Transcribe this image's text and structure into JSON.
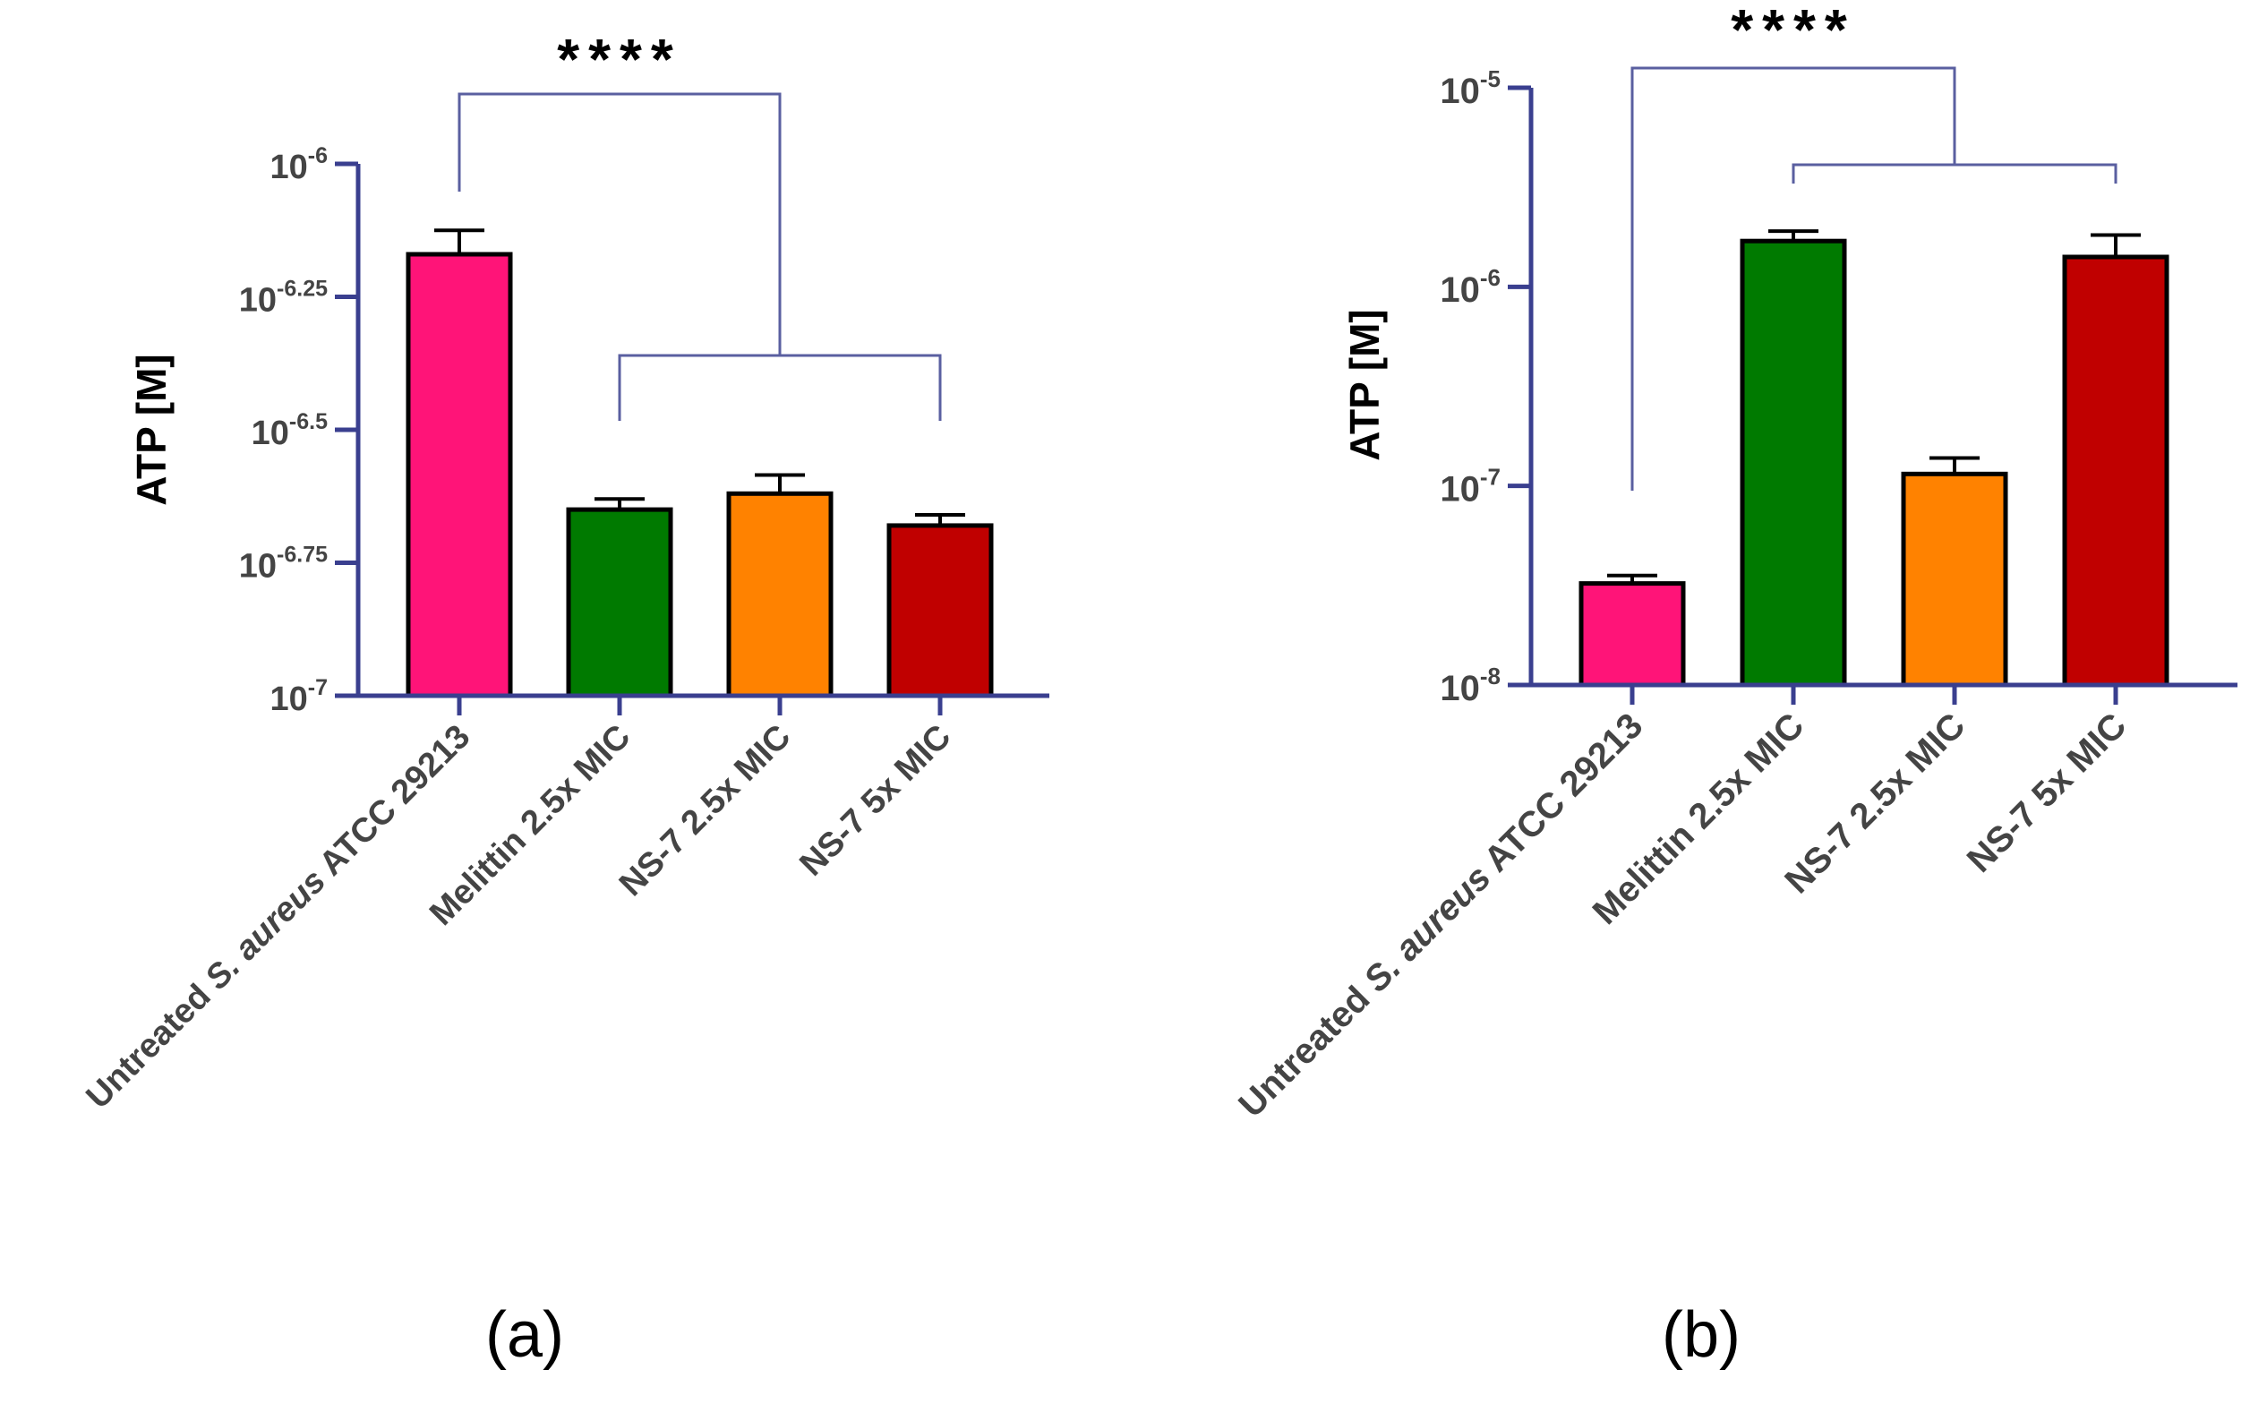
{
  "colors": {
    "axis": "#3a3f8f",
    "bracket": "#5a5fa0",
    "bar_outline": "#000000"
  },
  "chart_data": [
    {
      "id": "a",
      "panel_label": "(a)",
      "type": "bar",
      "ylabel": "ATP [M]",
      "yscale": "log10",
      "ylim_exponent": [
        -7,
        -6
      ],
      "ytick_labels": [
        {
          "base": "10",
          "exp": "-6",
          "value_exp": -6
        },
        {
          "base": "10",
          "exp": "-6.25",
          "value_exp": -6.25
        },
        {
          "base": "10",
          "exp": "-6.5",
          "value_exp": -6.5
        },
        {
          "base": "10",
          "exp": "-6.75",
          "value_exp": -6.75
        },
        {
          "base": "10",
          "exp": "-7",
          "value_exp": -7
        }
      ],
      "categories": [
        {
          "pre": "Untreated ",
          "italic": "S. aureus",
          "post": " ATCC 29213"
        },
        {
          "pre": "Melittin 2.5x MIC",
          "italic": "",
          "post": ""
        },
        {
          "pre": "NS-7 2.5x MIC",
          "italic": "",
          "post": ""
        },
        {
          "pre": "NS-7 5x MIC",
          "italic": "",
          "post": ""
        }
      ],
      "values_exp": [
        -6.17,
        -6.65,
        -6.62,
        -6.68
      ],
      "error_exp": [
        -6.125,
        -6.63,
        -6.585,
        -6.66
      ],
      "bar_colors": [
        "#ff1478",
        "#007a00",
        "#ff8200",
        "#c00000"
      ],
      "significance": {
        "label": "****",
        "from": 0,
        "to_group": [
          1,
          3
        ]
      }
    },
    {
      "id": "b",
      "panel_label": "(b)",
      "type": "bar",
      "ylabel": "ATP [M]",
      "yscale": "log10",
      "ylim_exponent": [
        -8,
        -5
      ],
      "ytick_labels": [
        {
          "base": "10",
          "exp": "-5",
          "value_exp": -5
        },
        {
          "base": "10",
          "exp": "-6",
          "value_exp": -6
        },
        {
          "base": "10",
          "exp": "-7",
          "value_exp": -7
        },
        {
          "base": "10",
          "exp": "-8",
          "value_exp": -8
        }
      ],
      "categories": [
        {
          "pre": "Untreated ",
          "italic": "S. aureus",
          "post": " ATCC 29213"
        },
        {
          "pre": "Melittin 2.5x MIC",
          "italic": "",
          "post": ""
        },
        {
          "pre": "NS-7 2.5x MIC",
          "italic": "",
          "post": ""
        },
        {
          "pre": "NS-7 5x MIC",
          "italic": "",
          "post": ""
        }
      ],
      "values_exp": [
        -7.49,
        -5.77,
        -6.94,
        -5.85
      ],
      "error_exp": [
        -7.45,
        -5.72,
        -6.86,
        -5.74
      ],
      "bar_colors": [
        "#ff1478",
        "#007a00",
        "#ff8200",
        "#c00000"
      ],
      "significance": {
        "label": "****",
        "from": 0,
        "to_group": [
          1,
          3
        ]
      }
    }
  ]
}
